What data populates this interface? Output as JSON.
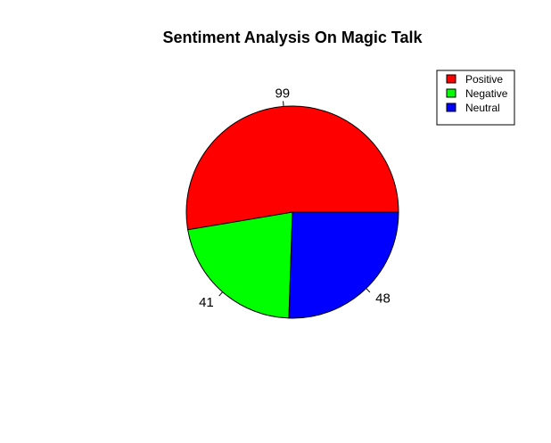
{
  "chart_data": {
    "type": "pie",
    "title": "Sentiment Analysis On Magic Talk",
    "categories": [
      "Positive",
      "Negative",
      "Neutral"
    ],
    "values": [
      99,
      41,
      48
    ],
    "labels": [
      "99",
      "41",
      "48"
    ],
    "colors": [
      "#ff0000",
      "#00ff00",
      "#0000ff"
    ],
    "start": "3 o'clock",
    "direction": "counterclockwise",
    "legend": {
      "position": "top-right",
      "entries": [
        "Positive",
        "Negative",
        "Neutral"
      ]
    }
  }
}
